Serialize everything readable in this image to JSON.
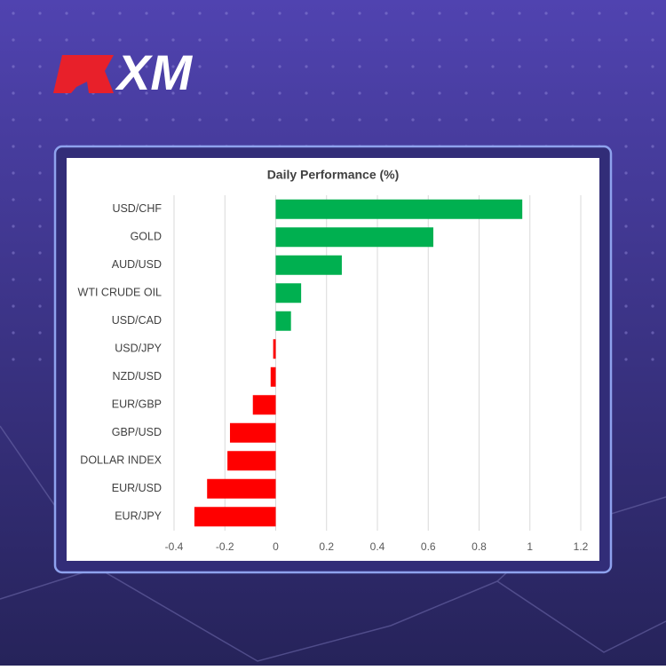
{
  "logo": "XM",
  "chart_data": {
    "type": "hbar",
    "title": "Daily Performance  (%)",
    "categories": [
      "USD/CHF",
      "GOLD",
      "AUD/USD",
      "WTI CRUDE OIL",
      "USD/CAD",
      "USD/JPY",
      "NZD/USD",
      "EUR/GBP",
      "GBP/USD",
      "DOLLAR INDEX",
      "EUR/USD",
      "EUR/JPY"
    ],
    "values": [
      0.97,
      0.62,
      0.26,
      0.1,
      0.06,
      -0.01,
      -0.02,
      -0.09,
      -0.18,
      -0.19,
      -0.27,
      -0.32
    ],
    "positive_color": "#00b050",
    "negative_color": "#ff0000",
    "xlim": [
      -0.4,
      1.2
    ],
    "xticks": [
      -0.4,
      -0.2,
      0,
      0.2,
      0.4,
      0.6,
      0.8,
      1,
      1.2
    ],
    "grid": true
  }
}
